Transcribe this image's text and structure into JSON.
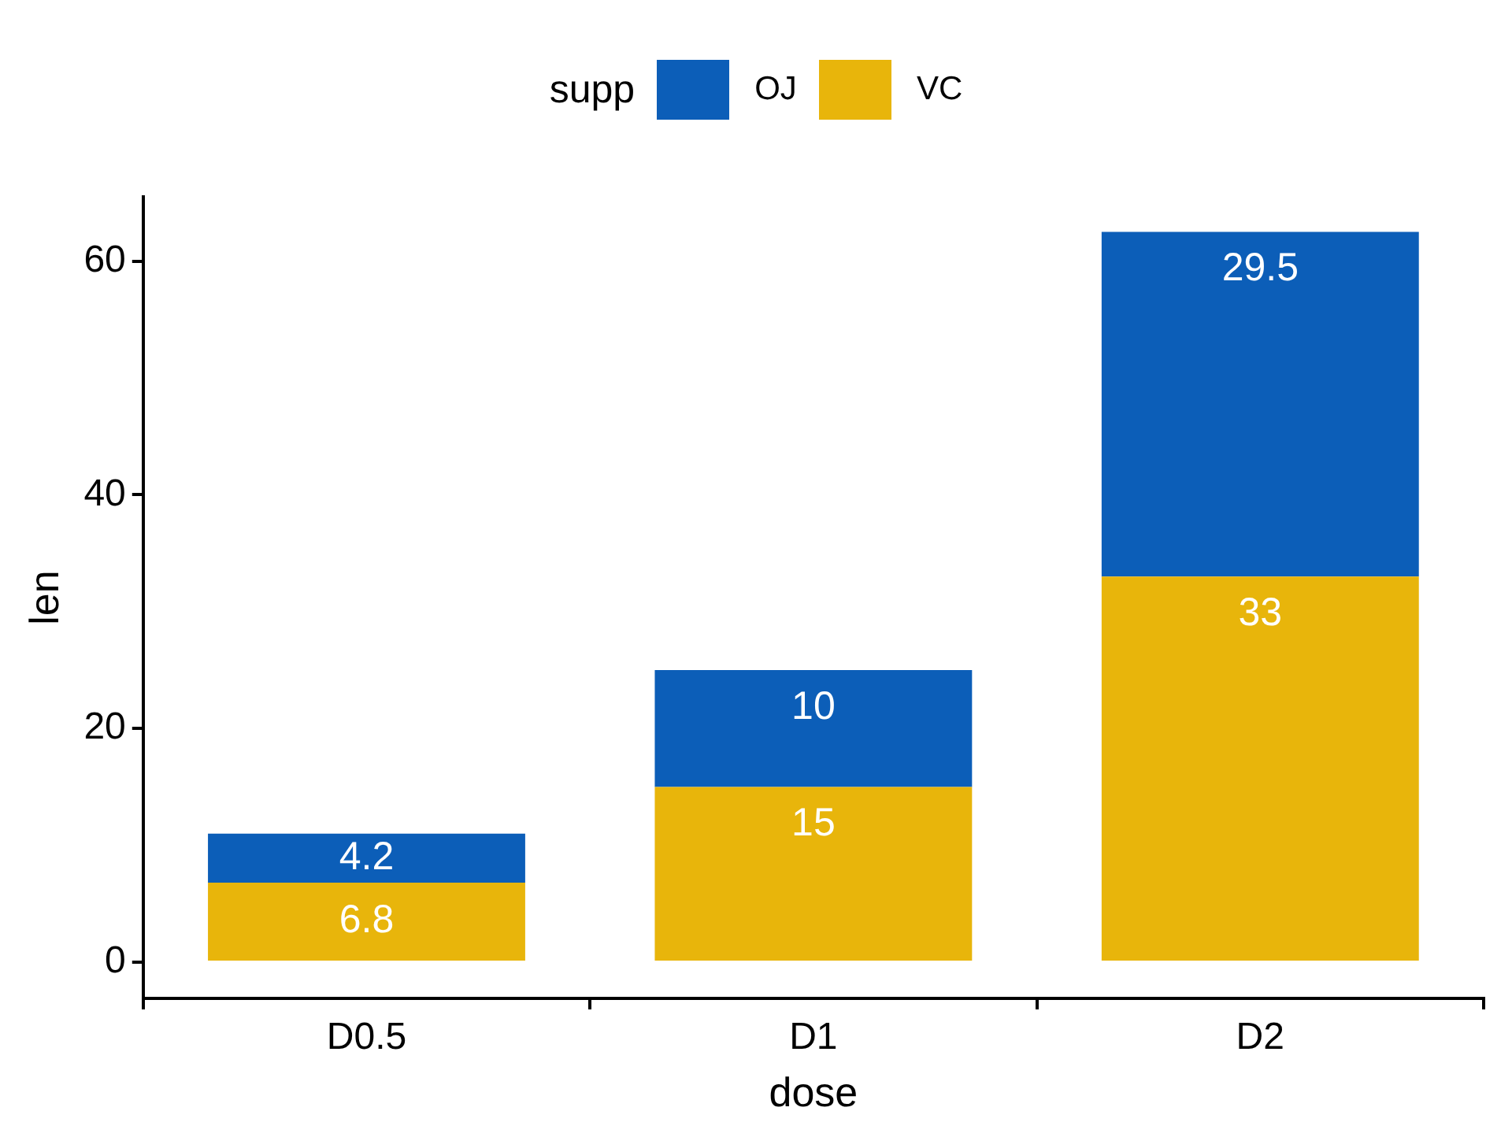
{
  "chart_data": {
    "type": "bar",
    "stacked": true,
    "xlabel": "dose",
    "ylabel": "len",
    "legend_title": "supp",
    "legend": "top",
    "categories": [
      "D0.5",
      "D1",
      "D2"
    ],
    "series": [
      {
        "name": "VC",
        "color": "#e8b50b",
        "values": [
          6.8,
          15,
          33
        ]
      },
      {
        "name": "OJ",
        "color": "#0c5eb8",
        "values": [
          4.2,
          10,
          29.5
        ]
      }
    ],
    "ylim": [
      -3.1,
      65.5
    ],
    "yticks": [
      0,
      20,
      40,
      60
    ],
    "grid": false,
    "data_labels": true
  }
}
